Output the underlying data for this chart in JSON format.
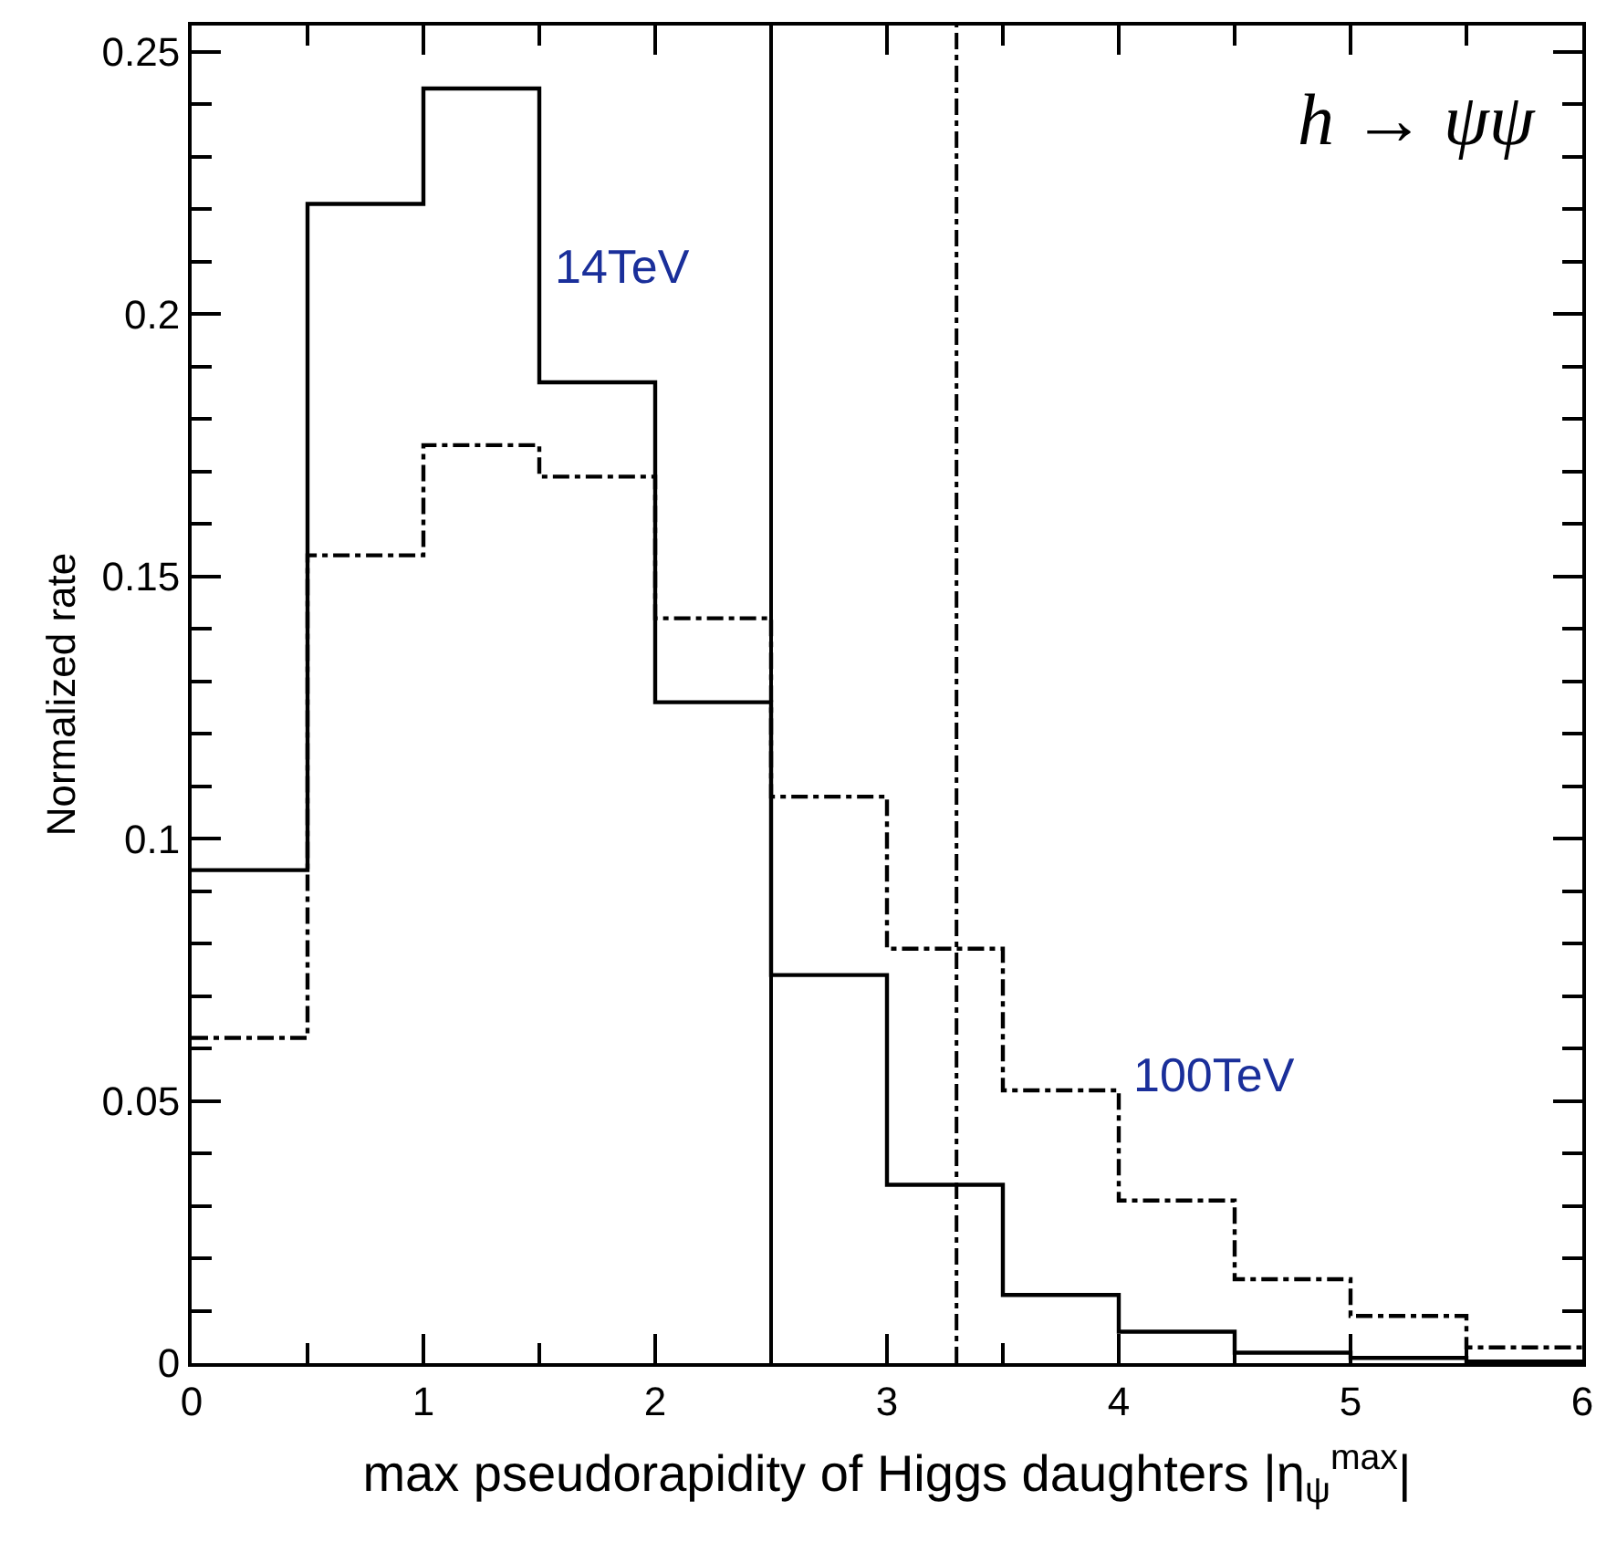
{
  "chart_data": {
    "type": "histogram",
    "xlabel": "max pseudorapidity of Higgs daughters |η$_{ψ}$$^{max}$|",
    "ylabel": "Normalized rate",
    "annotations": [
      "h → ψψ"
    ],
    "bins": [
      0,
      0.5,
      1,
      1.5,
      2,
      2.5,
      3,
      3.5,
      4,
      4.5,
      5,
      5.5,
      6
    ],
    "series": [
      {
        "name": "14TeV",
        "color": "#000000",
        "line_style": "solid",
        "values": [
          0.094,
          0.221,
          0.243,
          0.187,
          0.126,
          0.074,
          0.034,
          0.013,
          0.006,
          0.002,
          0.001,
          0.0003
        ]
      },
      {
        "name": "100TeV",
        "color": "#000000",
        "line_style": "dashdot",
        "values": [
          0.062,
          0.154,
          0.175,
          0.169,
          0.142,
          0.108,
          0.079,
          0.052,
          0.031,
          0.016,
          0.009,
          0.003
        ]
      }
    ],
    "ref_lines": [
      {
        "axis": "x",
        "value": 2.5,
        "label": null,
        "color": "#000000",
        "line_style": "solid"
      },
      {
        "axis": "x",
        "value": 3.3,
        "label": null,
        "color": "#000000",
        "line_style": "dashdot"
      }
    ],
    "xlim": [
      0,
      6
    ],
    "xticks": [
      0,
      1,
      2,
      3,
      4,
      5,
      6
    ],
    "ylim": [
      0,
      0.255
    ],
    "yticks": [
      0,
      0.05,
      0.1,
      0.15,
      0.2,
      0.25
    ]
  }
}
